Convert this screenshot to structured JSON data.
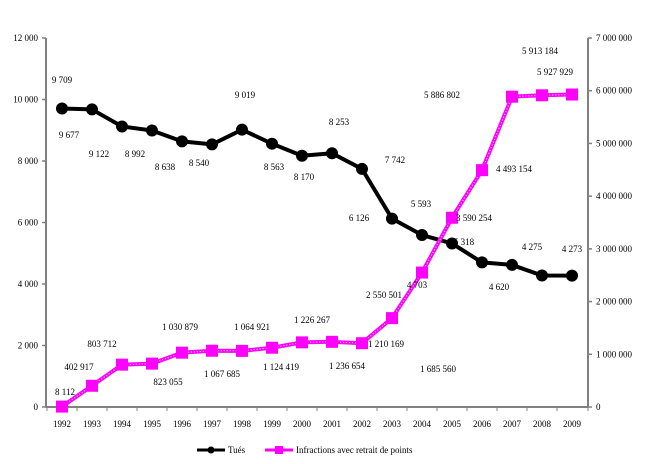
{
  "chart_data": {
    "type": "line",
    "categories": [
      "1992",
      "1993",
      "1994",
      "1995",
      "1996",
      "1997",
      "1998",
      "1999",
      "2000",
      "2001",
      "2002",
      "2003",
      "2004",
      "2005",
      "2006",
      "2007",
      "2008",
      "2009"
    ],
    "series": [
      {
        "name": "Tués",
        "axis": "left",
        "color": "#000000",
        "marker": "circle",
        "values": [
          9709,
          9677,
          9122,
          8992,
          8638,
          8540,
          9019,
          8563,
          8170,
          8253,
          7742,
          6126,
          5593,
          5318,
          4703,
          4620,
          4275,
          4273
        ],
        "labels": [
          "9 709",
          "9 677",
          "9 122",
          "8 992",
          "8 638",
          "8 540",
          "9 019",
          "8 563",
          "8 170",
          "8 253",
          "7 742",
          "6 126",
          "5 593",
          "5 318",
          "4 703",
          "4 620",
          "4 275",
          "4 273"
        ]
      },
      {
        "name": "Infractions avec retrait de points",
        "axis": "right",
        "color": "#FF00FF",
        "marker": "square",
        "values": [
          8112,
          402917,
          803712,
          823055,
          1030879,
          1067685,
          1064921,
          1124419,
          1226267,
          1236654,
          1210169,
          1685560,
          2550501,
          3590254,
          4493154,
          5886802,
          5913184,
          5927929
        ],
        "labels": [
          "8 112",
          "402 917",
          "803 712",
          "823 055",
          "1 030 879",
          "1 067 685",
          "1 064 921",
          "1 124 419",
          "1 226 267",
          "1 236 654",
          "1 210 169",
          "1 685 560",
          "2 550 501",
          "3 590 254",
          "4 493 154",
          "5 886 802",
          "5 913 184",
          "5 927 929"
        ]
      }
    ],
    "y_left": {
      "range": [
        0,
        12000
      ],
      "ticks": [
        0,
        2000,
        4000,
        6000,
        8000,
        10000,
        12000
      ],
      "tick_labels": [
        "0",
        "2 000",
        "4 000",
        "6 000",
        "8 000",
        "10 000",
        "12 000"
      ]
    },
    "y_right": {
      "range": [
        0,
        7000000
      ],
      "ticks": [
        0,
        1000000,
        2000000,
        3000000,
        4000000,
        5000000,
        6000000,
        7000000
      ],
      "tick_labels": [
        "0",
        "1 000 000",
        "2 000 000",
        "3 000 000",
        "4 000 000",
        "5 000 000",
        "6 000 000",
        "7 000 000"
      ]
    },
    "grid": false,
    "legend": "bottom"
  }
}
